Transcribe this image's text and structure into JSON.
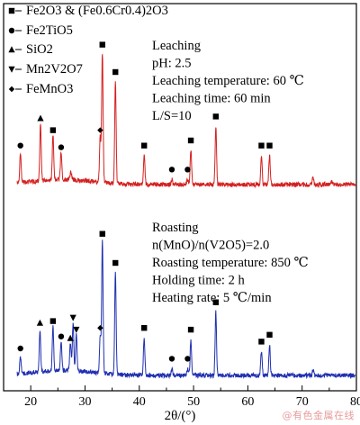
{
  "chart_data": {
    "type": "line",
    "xlabel": "2θ/(°)",
    "xlim": [
      15,
      80
    ],
    "x_ticks": [
      "20",
      "30",
      "40",
      "50",
      "60",
      "70",
      "80"
    ],
    "legend": [
      {
        "marker": "square",
        "label": "Fe2O3 & (Fe0.6Cr0.4)2O3"
      },
      {
        "marker": "circle",
        "label": "Fe2TiO5"
      },
      {
        "marker": "triangle-up",
        "label": "SiO2"
      },
      {
        "marker": "triangle-down",
        "label": "Mn2V2O7"
      },
      {
        "marker": "diamond",
        "label": "FeMnO3"
      }
    ],
    "series": [
      {
        "condition_lines": [
          "Leaching",
          "pH: 2.5",
          "Leaching temperature: 60 ℃",
          "Leaching time: 60 min",
          "L/S=10"
        ],
        "color": "#d42020",
        "peaks": [
          {
            "x": 18.1,
            "h": 0.17,
            "marker": "circle"
          },
          {
            "x": 21.8,
            "h": 0.33,
            "marker": "triangle-up"
          },
          {
            "x": 24.1,
            "h": 0.26,
            "marker": "square"
          },
          {
            "x": 25.6,
            "h": 0.16,
            "marker": "circle"
          },
          {
            "x": 27.4,
            "h": 0.05,
            "marker": null
          },
          {
            "x": 32.8,
            "h": 0.26,
            "marker": "diamond"
          },
          {
            "x": 33.2,
            "h": 0.76,
            "marker": "square"
          },
          {
            "x": 35.6,
            "h": 0.6,
            "marker": "square"
          },
          {
            "x": 40.9,
            "h": 0.17,
            "marker": "square"
          },
          {
            "x": 46.0,
            "h": 0.03,
            "marker": "circle"
          },
          {
            "x": 48.9,
            "h": 0.03,
            "marker": "circle"
          },
          {
            "x": 49.5,
            "h": 0.2,
            "marker": "square"
          },
          {
            "x": 54.1,
            "h": 0.34,
            "marker": "square"
          },
          {
            "x": 62.5,
            "h": 0.17,
            "marker": "square"
          },
          {
            "x": 64.0,
            "h": 0.17,
            "marker": "square"
          },
          {
            "x": 72.0,
            "h": 0.04,
            "marker": null
          },
          {
            "x": 75.5,
            "h": 0.02,
            "marker": null
          }
        ]
      },
      {
        "condition_lines": [
          "Roasting",
          "n(MnO)/n(V2O5)=2.0",
          "Roasting temperature: 850 ℃",
          "Holding time: 2 h",
          "Heating rate: 5 ℃/min"
        ],
        "color": "#1f2fb0",
        "peaks": [
          {
            "x": 18.1,
            "h": 0.1,
            "marker": "circle"
          },
          {
            "x": 21.7,
            "h": 0.25,
            "marker": "triangle-up"
          },
          {
            "x": 24.1,
            "h": 0.26,
            "marker": "square"
          },
          {
            "x": 25.6,
            "h": 0.17,
            "marker": "circle"
          },
          {
            "x": 27.3,
            "h": 0.16,
            "marker": "triangle-up"
          },
          {
            "x": 27.8,
            "h": 0.28,
            "marker": "triangle-down"
          },
          {
            "x": 28.4,
            "h": 0.21,
            "marker": "triangle-down"
          },
          {
            "x": 32.8,
            "h": 0.22,
            "marker": "diamond"
          },
          {
            "x": 33.2,
            "h": 0.77,
            "marker": "square"
          },
          {
            "x": 35.6,
            "h": 0.6,
            "marker": "square"
          },
          {
            "x": 40.9,
            "h": 0.22,
            "marker": "square"
          },
          {
            "x": 46.0,
            "h": 0.04,
            "marker": "circle"
          },
          {
            "x": 48.9,
            "h": 0.04,
            "marker": "circle"
          },
          {
            "x": 49.5,
            "h": 0.21,
            "marker": "square"
          },
          {
            "x": 54.1,
            "h": 0.37,
            "marker": "square"
          },
          {
            "x": 62.5,
            "h": 0.14,
            "marker": "square"
          },
          {
            "x": 64.0,
            "h": 0.18,
            "marker": "square"
          },
          {
            "x": 72.0,
            "h": 0.03,
            "marker": null
          }
        ]
      }
    ],
    "grid": false
  },
  "watermark": "@有色金属在线"
}
